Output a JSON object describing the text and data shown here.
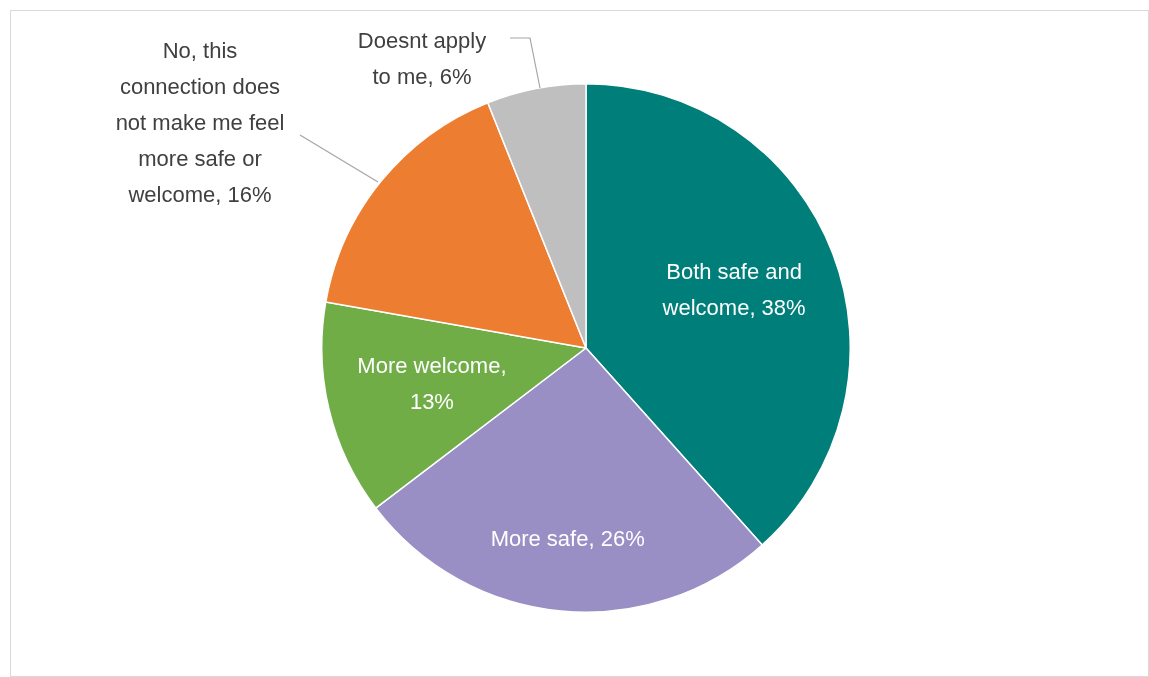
{
  "chart_data": {
    "type": "pie",
    "categories": [
      "Both safe and welcome, 38%",
      "More safe, 26%",
      "More welcome, 13%",
      "No, this connection does not make me feel more safe or welcome, 16%",
      "Doesnt apply to me, 6%"
    ],
    "values": [
      38,
      26,
      13,
      16,
      6
    ],
    "colors": [
      "#007e7a",
      "#9a8fc4",
      "#70ad47",
      "#ed7d31",
      "#bfbfbf"
    ],
    "legend": false
  }
}
